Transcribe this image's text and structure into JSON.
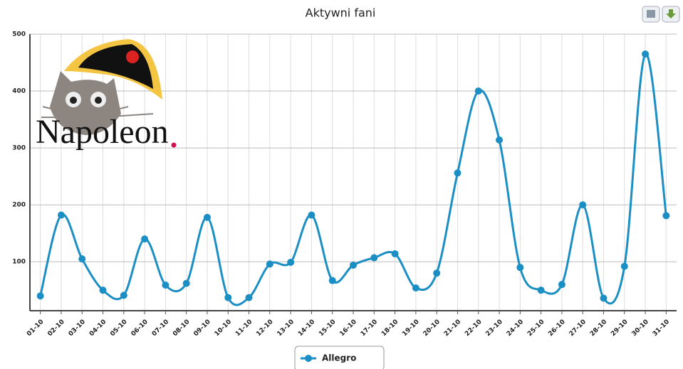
{
  "chart_data": {
    "type": "line",
    "title": "Aktywni fani",
    "watermark": "Napoleon",
    "categories": [
      "01-10",
      "02-10",
      "03-10",
      "04-10",
      "05-10",
      "06-10",
      "07-10",
      "08-10",
      "09-10",
      "10-10",
      "11-10",
      "12-10",
      "13-10",
      "14-10",
      "15-10",
      "16-10",
      "17-10",
      "18-10",
      "19-10",
      "20-10",
      "21-10",
      "22-10",
      "23-10",
      "24-10",
      "25-10",
      "26-10",
      "27-10",
      "28-10",
      "29-10",
      "30-10",
      "31-10"
    ],
    "series": [
      {
        "name": "Allegro",
        "color": "#1b8fc4",
        "values": [
          40,
          182,
          105,
          50,
          41,
          140,
          59,
          62,
          178,
          37,
          37,
          96,
          99,
          182,
          67,
          94,
          107,
          114,
          54,
          80,
          256,
          400,
          314,
          90,
          50,
          60,
          200,
          36,
          92,
          465,
          181
        ]
      }
    ],
    "ylim": [
      14,
      500
    ],
    "yticks": [
      100,
      200,
      300,
      400,
      500
    ],
    "grid": true,
    "smooth": true,
    "legend": "bottom"
  }
}
